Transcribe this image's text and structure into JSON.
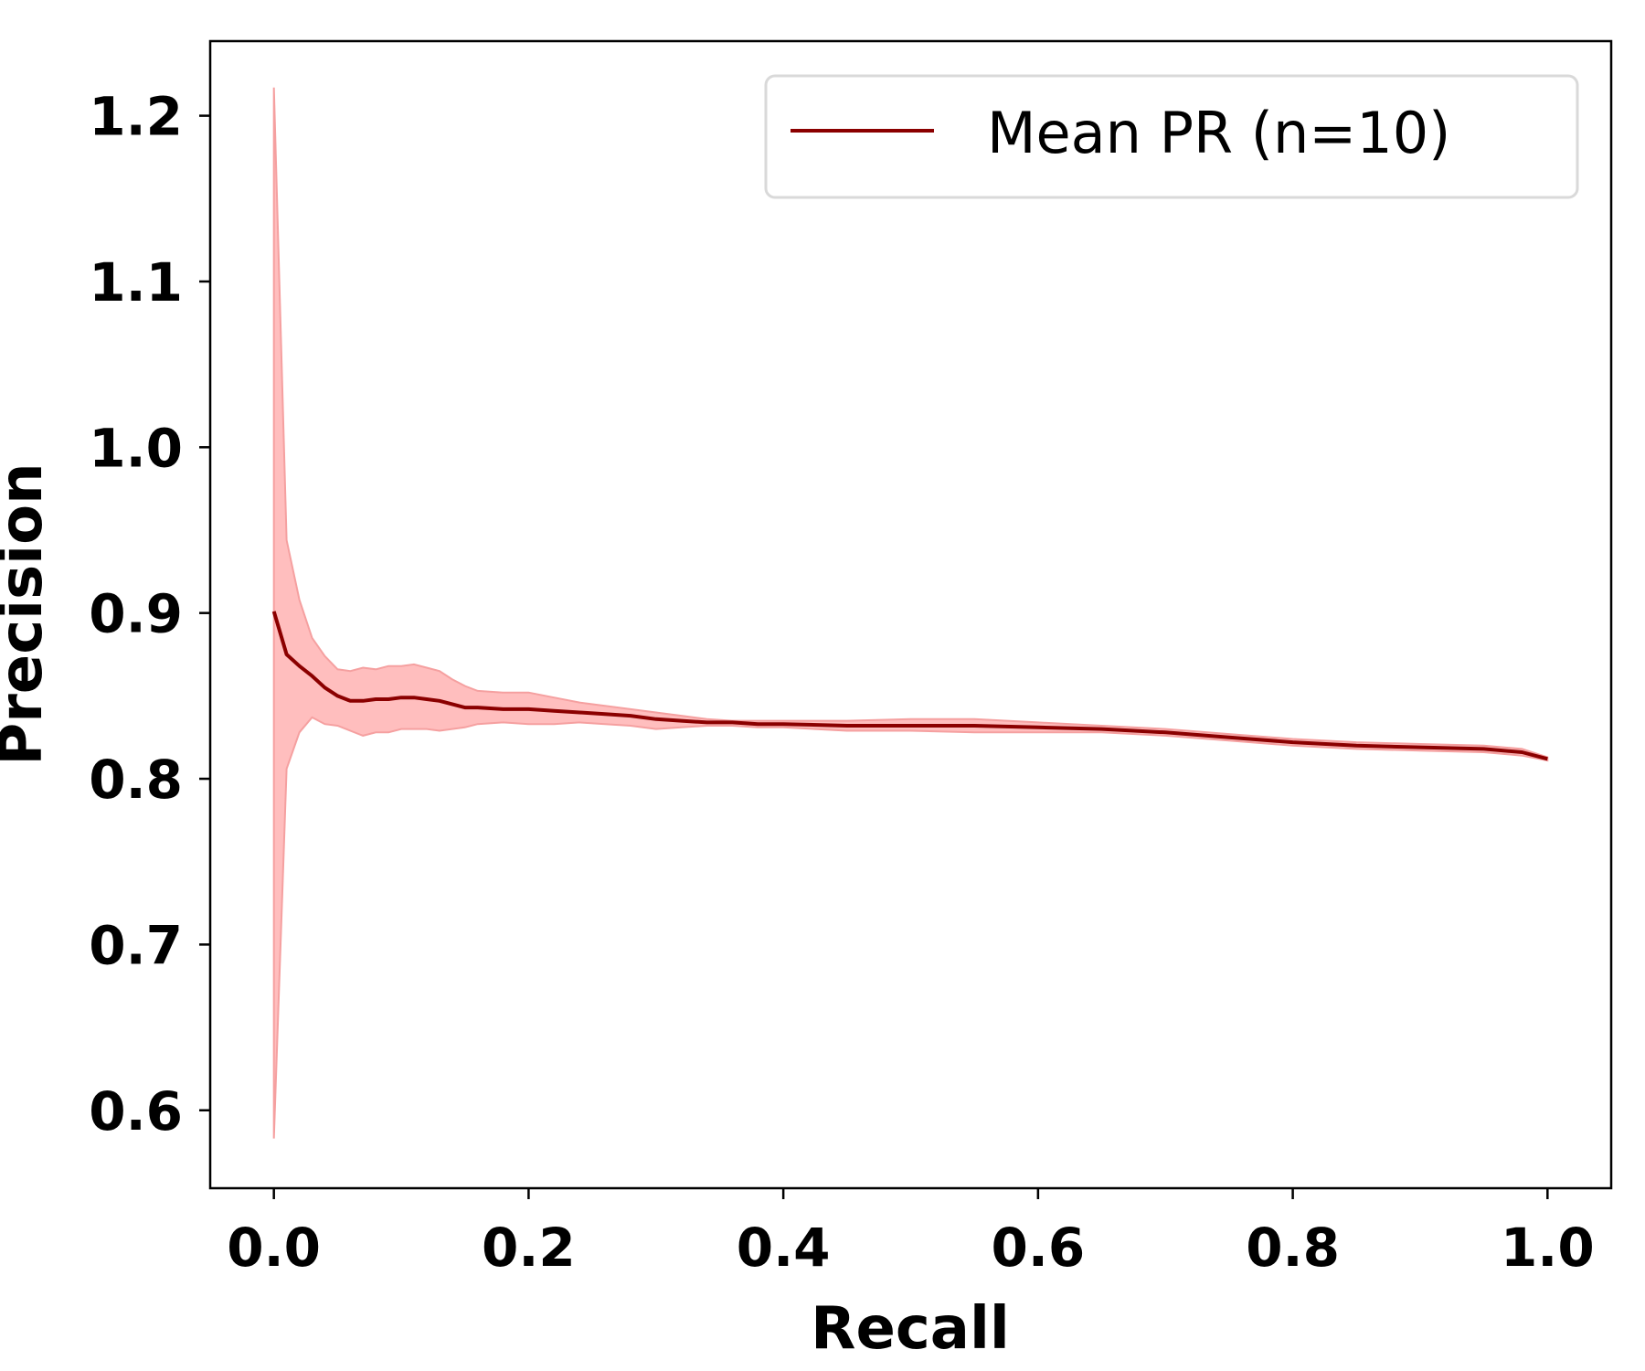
{
  "chart_data": {
    "type": "line",
    "title": "",
    "xlabel": "Recall",
    "ylabel": "Precision",
    "xlim": [
      -0.05,
      1.05
    ],
    "ylim": [
      0.553,
      1.245
    ],
    "xticks": [
      0.0,
      0.2,
      0.4,
      0.6,
      0.8,
      1.0
    ],
    "xtick_labels": [
      "0.0",
      "0.2",
      "0.4",
      "0.6",
      "0.8",
      "1.0"
    ],
    "yticks": [
      0.6,
      0.7,
      0.8,
      0.9,
      1.0,
      1.1,
      1.2
    ],
    "ytick_labels": [
      "0.6",
      "0.7",
      "0.8",
      "0.9",
      "1.0",
      "1.1",
      "1.2"
    ],
    "grid": false,
    "legend": {
      "placement": "top-right",
      "entries": [
        "Mean PR (n=10)"
      ]
    },
    "colors": {
      "line": "#8b0000",
      "band": "#ffb3b3",
      "band_edge": "#f5a0a0",
      "axes": "#000000"
    },
    "series": [
      {
        "name": "Mean PR (n=10)",
        "x": [
          0.0,
          0.01,
          0.02,
          0.03,
          0.04,
          0.05,
          0.06,
          0.07,
          0.08,
          0.09,
          0.1,
          0.11,
          0.12,
          0.13,
          0.14,
          0.15,
          0.16,
          0.18,
          0.2,
          0.22,
          0.24,
          0.26,
          0.28,
          0.3,
          0.32,
          0.34,
          0.36,
          0.38,
          0.4,
          0.45,
          0.5,
          0.55,
          0.6,
          0.65,
          0.7,
          0.75,
          0.8,
          0.85,
          0.9,
          0.95,
          0.98,
          1.0
        ],
        "y": [
          0.901,
          0.875,
          0.868,
          0.862,
          0.855,
          0.85,
          0.847,
          0.847,
          0.848,
          0.848,
          0.849,
          0.849,
          0.848,
          0.847,
          0.845,
          0.843,
          0.843,
          0.842,
          0.842,
          0.841,
          0.84,
          0.839,
          0.838,
          0.836,
          0.835,
          0.834,
          0.834,
          0.833,
          0.833,
          0.832,
          0.832,
          0.832,
          0.831,
          0.83,
          0.828,
          0.825,
          0.822,
          0.82,
          0.819,
          0.818,
          0.816,
          0.812
        ],
        "upper": [
          1.217,
          0.944,
          0.908,
          0.885,
          0.874,
          0.866,
          0.865,
          0.867,
          0.866,
          0.868,
          0.868,
          0.869,
          0.867,
          0.865,
          0.86,
          0.856,
          0.853,
          0.852,
          0.852,
          0.849,
          0.846,
          0.844,
          0.842,
          0.84,
          0.838,
          0.836,
          0.835,
          0.835,
          0.835,
          0.835,
          0.836,
          0.836,
          0.834,
          0.832,
          0.83,
          0.827,
          0.824,
          0.822,
          0.821,
          0.82,
          0.818,
          0.813
        ],
        "lower": [
          0.583,
          0.806,
          0.828,
          0.837,
          0.833,
          0.832,
          0.829,
          0.826,
          0.828,
          0.828,
          0.83,
          0.83,
          0.83,
          0.829,
          0.83,
          0.831,
          0.833,
          0.834,
          0.833,
          0.833,
          0.834,
          0.833,
          0.832,
          0.83,
          0.831,
          0.832,
          0.832,
          0.831,
          0.831,
          0.829,
          0.829,
          0.828,
          0.828,
          0.828,
          0.826,
          0.823,
          0.82,
          0.818,
          0.817,
          0.816,
          0.814,
          0.811
        ]
      }
    ]
  }
}
